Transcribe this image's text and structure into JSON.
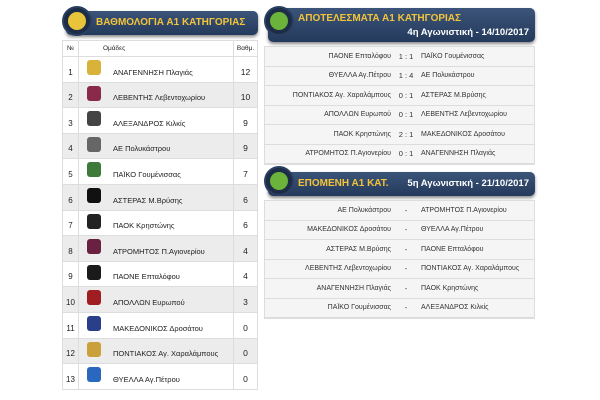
{
  "standings": {
    "title": "ΒΑΘΜΟΛΟΓΙΑ Α1 ΚΑΤΗΓΟΡΙΑΣ",
    "icon": "notebook-icon",
    "col_pos": "№",
    "col_team": "Ομάδες",
    "col_pts": "Βαθμ.",
    "rows": [
      {
        "pos": "1",
        "team": "ΑΝΑΓΕΝΝΗΣΗ Πλαγιάς",
        "pts": "12",
        "color": "#d9b23a"
      },
      {
        "pos": "2",
        "team": "ΛΕΒΕΝΤΗΣ Λεβεντοχωρίου",
        "pts": "10",
        "color": "#8a2a4a"
      },
      {
        "pos": "3",
        "team": "ΑΛΕΞΑΝΔΡΟΣ Κιλκίς",
        "pts": "9",
        "color": "#444"
      },
      {
        "pos": "4",
        "team": "ΑΕ Πολυκάστρου",
        "pts": "9",
        "color": "#666"
      },
      {
        "pos": "5",
        "team": "ΠΑΪΚΟ Γουμένισσας",
        "pts": "7",
        "color": "#3e7a3a"
      },
      {
        "pos": "6",
        "team": "ΑΣΤΕΡΑΣ Μ.Βρύσης",
        "pts": "6",
        "color": "#111"
      },
      {
        "pos": "7",
        "team": "ΠΑΟΚ Κρηστώνης",
        "pts": "6",
        "color": "#222"
      },
      {
        "pos": "8",
        "team": "ΑΤΡΟΜΗΤΟΣ Π.Αγιονερίου",
        "pts": "4",
        "color": "#6a2040"
      },
      {
        "pos": "9",
        "team": "ΠΑΟΝΕ Επταλόφου",
        "pts": "4",
        "color": "#1a1a1a"
      },
      {
        "pos": "10",
        "team": "ΑΠΟΛΛΩΝ Ευρωπού",
        "pts": "3",
        "color": "#a01e22"
      },
      {
        "pos": "11",
        "team": "ΜΑΚΕΔΟΝΙΚΟΣ Δροσάτου",
        "pts": "0",
        "color": "#2a3f8a"
      },
      {
        "pos": "12",
        "team": "ΠΟΝΤΙΑΚΟΣ Αγ. Χαραλάμπους",
        "pts": "0",
        "color": "#c9a03a"
      },
      {
        "pos": "13",
        "team": "ΘΥΕΛΛΑ Αγ.Πέτρου",
        "pts": "0",
        "color": "#2a68c0"
      }
    ]
  },
  "results": {
    "title": "ΑΠΟΤΕΛΕΣΜΑΤΑ Α1 ΚΑΤΗΓΟΡΙΑΣ",
    "round": "4η Αγωνιστική - 14/10/2017",
    "icon": "notebook-icon",
    "matches": [
      {
        "home": "ΠΑΟΝΕ Επταλόφου",
        "score": "1 : 1",
        "away": "ΠΑΪΚΟ Γουμένισσας"
      },
      {
        "home": "ΘΥΕΛΛΑ Αγ.Πέτρου",
        "score": "1 : 4",
        "away": "ΑΕ Πολυκάστρου"
      },
      {
        "home": "ΠΟΝΤΙΑΚΟΣ Αγ. Χαραλάμπους",
        "score": "0 : 1",
        "away": "ΑΣΤΕΡΑΣ Μ.Βρύσης"
      },
      {
        "home": "ΑΠΟΛΛΩΝ Ευρωπού",
        "score": "0 : 1",
        "away": "ΛΕΒΕΝΤΗΣ Λεβεντοχωρίου"
      },
      {
        "home": "ΠΑΟΚ Κρηστώνης",
        "score": "2 : 1",
        "away": "ΜΑΚΕΔΟΝΙΚΟΣ Δροσάτου"
      },
      {
        "home": "ΑΤΡΟΜΗΤΟΣ Π.Αγιονερίου",
        "score": "0 : 1",
        "away": "ΑΝΑΓΕΝΝΗΣΗ Πλαγιάς"
      }
    ]
  },
  "next": {
    "title": "ΕΠΟΜΕΝΗ Α1 ΚΑΤ.",
    "round": "5η Αγωνιστική - 21/10/2017",
    "icon": "notebook-icon",
    "matches": [
      {
        "home": "ΑΕ Πολυκάστρου",
        "score": "-",
        "away": "ΑΤΡΟΜΗΤΟΣ Π.Αγιονερίου"
      },
      {
        "home": "ΜΑΚΕΔΟΝΙΚΟΣ Δροσάτου",
        "score": "-",
        "away": "ΘΥΕΛΛΑ Αγ.Πέτρου"
      },
      {
        "home": "ΑΣΤΕΡΑΣ Μ.Βρύσης",
        "score": "-",
        "away": "ΠΑΟΝΕ Επταλόφου"
      },
      {
        "home": "ΛΕΒΕΝΤΗΣ Λεβεντοχωρίου",
        "score": "-",
        "away": "ΠΟΝΤΙΑΚΟΣ Αγ. Χαραλάμπους"
      },
      {
        "home": "ΑΝΑΓΕΝΝΗΣΗ Πλαγιάς",
        "score": "-",
        "away": "ΠΑΟΚ Κρηστώνης"
      },
      {
        "home": "ΠΑΪΚΟ Γουμένισσας",
        "score": "-",
        "away": "ΑΛΕΞΑΝΔΡΟΣ Κιλκίς"
      }
    ]
  }
}
